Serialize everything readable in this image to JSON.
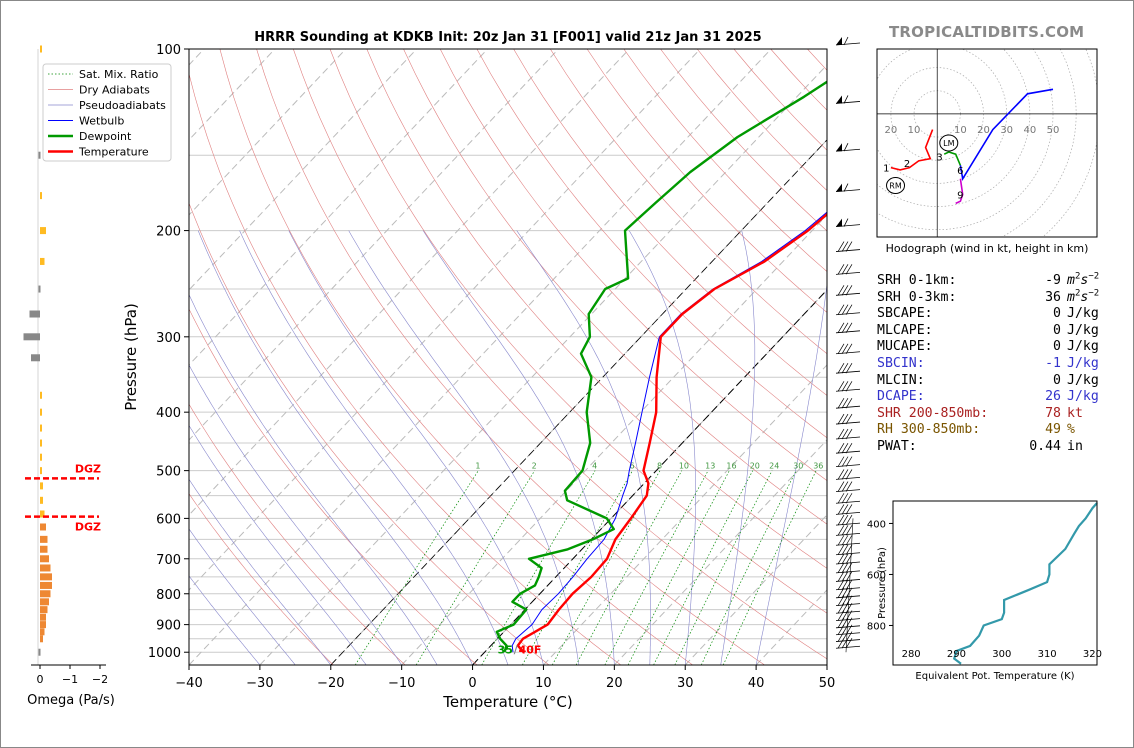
{
  "brand": "TROPICALTIDBITS.COM",
  "chart_data": [
    {
      "type": "line",
      "title": "HRRR Sounding at KDKB Init: 20z Jan 31 [F001] valid 21z Jan 31 2025",
      "xlabel": "Temperature (°C)",
      "ylabel": "Pressure (hPa)",
      "y_scale": "log",
      "xlim": [
        -40,
        50
      ],
      "ylim": [
        1050,
        100
      ],
      "xticks": [
        -40,
        -30,
        -20,
        -10,
        0,
        10,
        20,
        30,
        40,
        50
      ],
      "yticks": [
        100,
        200,
        300,
        400,
        500,
        600,
        700,
        800,
        900,
        1000
      ],
      "legend": {
        "placement": "top-left",
        "entries": [
          "Sat. Mix. Ratio",
          "Dry Adiabats",
          "Pseudoadiabats",
          "Wetbulb",
          "Dewpoint",
          "Temperature"
        ]
      },
      "colors": {
        "temperature": "#ff0000",
        "dewpoint": "#009900",
        "wetbulb": "#0000ff",
        "dry_adiabats": "#e08080",
        "pseudoadiabats": "#8888cc",
        "mixing_ratio": "#008800"
      },
      "series": [
        {
          "name": "Temperature",
          "points": [
            [
              5.5,
              1000
            ],
            [
              3.8,
              975
            ],
            [
              3.6,
              950
            ],
            [
              4.4,
              925
            ],
            [
              5.2,
              900
            ],
            [
              4.8,
              850
            ],
            [
              4.6,
              800
            ],
            [
              5.0,
              750
            ],
            [
              4.8,
              700
            ],
            [
              3.4,
              650
            ],
            [
              2.8,
              600
            ],
            [
              2.0,
              550
            ],
            [
              0.6,
              525
            ],
            [
              -1.8,
              500
            ],
            [
              -4.6,
              450
            ],
            [
              -7.8,
              400
            ],
            [
              -12.4,
              350
            ],
            [
              -17.2,
              300
            ],
            [
              -17.2,
              275
            ],
            [
              -16.0,
              250
            ],
            [
              -12.6,
              225
            ],
            [
              -10.6,
              200
            ],
            [
              -9.5,
              175
            ],
            [
              -8.1,
              150
            ],
            [
              -6.9,
              125
            ],
            [
              -4.6,
              110
            ],
            [
              -3.4,
              100
            ]
          ]
        },
        {
          "name": "Wetbulb",
          "points": [
            [
              4.0,
              1000
            ],
            [
              3.0,
              975
            ],
            [
              2.6,
              950
            ],
            [
              2.8,
              925
            ],
            [
              3.0,
              900
            ],
            [
              2.4,
              850
            ],
            [
              2.6,
              800
            ],
            [
              2.4,
              750
            ],
            [
              2.0,
              700
            ],
            [
              1.8,
              650
            ],
            [
              0.6,
              600
            ],
            [
              -1.4,
              550
            ],
            [
              -2.4,
              525
            ],
            [
              -3.8,
              500
            ],
            [
              -6.6,
              450
            ],
            [
              -9.8,
              400
            ],
            [
              -13.4,
              350
            ],
            [
              -17.4,
              300
            ],
            [
              -17.4,
              275
            ],
            [
              -16.2,
              250
            ],
            [
              -13.0,
              225
            ],
            [
              -11.0,
              200
            ],
            [
              -9.8,
              175
            ],
            [
              -8.4,
              150
            ],
            [
              -7.3,
              125
            ],
            [
              -5.0,
              110
            ],
            [
              -3.8,
              100
            ]
          ]
        },
        {
          "name": "Dewpoint",
          "points": [
            [
              2.8,
              1000
            ],
            [
              2.2,
              975
            ],
            [
              0.4,
              950
            ],
            [
              -1.0,
              925
            ],
            [
              0.4,
              900
            ],
            [
              0.2,
              850
            ],
            [
              -2.8,
              825
            ],
            [
              -2.8,
              800
            ],
            [
              -1.8,
              775
            ],
            [
              -2.4,
              750
            ],
            [
              -3.2,
              725
            ],
            [
              -6.2,
              700
            ],
            [
              -2.0,
              675
            ],
            [
              0.2,
              650
            ],
            [
              1.8,
              625
            ],
            [
              -0.6,
              600
            ],
            [
              -8.6,
              560
            ],
            [
              -10.2,
              540
            ],
            [
              -10.4,
              500
            ],
            [
              -13.0,
              450
            ],
            [
              -17.6,
              400
            ],
            [
              -21.6,
              350
            ],
            [
              -26.2,
              320
            ],
            [
              -27.2,
              300
            ],
            [
              -30.4,
              275
            ],
            [
              -31.4,
              250
            ],
            [
              -29.6,
              240
            ],
            [
              -36.4,
              200
            ],
            [
              -35.8,
              180
            ],
            [
              -35.0,
              160
            ],
            [
              -33.0,
              140
            ],
            [
              -29.0,
              120
            ],
            [
              -25.0,
              100
            ]
          ]
        }
      ]
    },
    {
      "type": "bar",
      "xlabel": "Omega (Pa/s)",
      "xticks": [
        "0",
        "−1",
        "−2"
      ],
      "markers": [
        "DGZ",
        "DGZ"
      ],
      "marker_pressure": [
        515,
        596
      ],
      "bars": [
        [
          100,
          -0.05
        ],
        [
          150,
          0.05
        ],
        [
          175,
          -0.05
        ],
        [
          200,
          -0.2
        ],
        [
          225,
          -0.15
        ],
        [
          250,
          0.05
        ],
        [
          275,
          0.35
        ],
        [
          300,
          0.55
        ],
        [
          325,
          0.3
        ],
        [
          375,
          -0.05
        ],
        [
          400,
          -0.05
        ],
        [
          425,
          -0.05
        ],
        [
          450,
          -0.05
        ],
        [
          475,
          -0.05
        ],
        [
          500,
          -0.05
        ],
        [
          530,
          -0.1
        ],
        [
          560,
          -0.1
        ],
        [
          590,
          -0.15
        ],
        [
          620,
          -0.2
        ],
        [
          650,
          -0.25
        ],
        [
          675,
          -0.25
        ],
        [
          700,
          -0.3
        ],
        [
          725,
          -0.35
        ],
        [
          750,
          -0.4
        ],
        [
          775,
          -0.4
        ],
        [
          800,
          -0.35
        ],
        [
          825,
          -0.3
        ],
        [
          850,
          -0.25
        ],
        [
          875,
          -0.2
        ],
        [
          900,
          -0.2
        ],
        [
          925,
          -0.15
        ],
        [
          950,
          -0.1
        ],
        [
          1000,
          0.05
        ]
      ]
    },
    {
      "type": "line",
      "title": "Hodograph (wind in kt, height in km)",
      "ring_labels": [
        "20",
        "10",
        "10",
        "20",
        "30",
        "40",
        "50"
      ],
      "labels": [
        "1",
        "2",
        "3",
        "6",
        "9"
      ],
      "motion_labels": [
        "LM",
        "RM"
      ],
      "xlim": [
        -26,
        69
      ],
      "ylim": [
        -55,
        29
      ],
      "segments": [
        {
          "color": "#ff0000",
          "points": [
            [
              -20,
              -24
            ],
            [
              -16,
              -25
            ],
            [
              -12,
              -24
            ],
            [
              -8,
              -21
            ],
            [
              -3,
              -20
            ],
            [
              -5,
              -15
            ],
            [
              -2,
              -7
            ]
          ]
        },
        {
          "color": "#009900",
          "points": [
            [
              3,
              -18
            ],
            [
              5,
              -17
            ],
            [
              8,
              -18
            ],
            [
              10,
              -23
            ]
          ]
        },
        {
          "color": "#0000ff",
          "points": [
            [
              10,
              -23
            ],
            [
              11,
              -29
            ],
            [
              24,
              -7
            ],
            [
              39,
              9
            ],
            [
              50,
              11
            ]
          ]
        },
        {
          "color": "#cc00cc",
          "points": [
            [
              10,
              -29
            ],
            [
              11,
              -36
            ],
            [
              10,
              -39
            ],
            [
              8,
              -40
            ]
          ]
        }
      ],
      "label_points": [
        [
          -22,
          -24
        ],
        [
          -13,
          -22
        ],
        [
          1,
          -19
        ],
        [
          10,
          -25
        ],
        [
          10,
          -36
        ]
      ],
      "motion_points": [
        [
          5,
          -13
        ],
        [
          -18,
          -32
        ]
      ]
    },
    {
      "type": "line",
      "xlabel": "Equivalent Pot. Temperature (K)",
      "ylabel": "Pressure (hPa)",
      "xlim": [
        276,
        321
      ],
      "ylim": [
        955,
        312
      ],
      "xticks": [
        280,
        290,
        300,
        310,
        320
      ],
      "yticks": [
        400,
        600,
        800
      ],
      "color": "#3399aa",
      "points": [
        [
          291,
          950
        ],
        [
          289.5,
          930
        ],
        [
          290,
          900
        ],
        [
          293,
          880
        ],
        [
          295,
          840
        ],
        [
          296,
          800
        ],
        [
          300,
          775
        ],
        [
          300.5,
          750
        ],
        [
          300.5,
          700
        ],
        [
          306,
          660
        ],
        [
          310,
          630
        ],
        [
          310.5,
          600
        ],
        [
          310.5,
          560
        ],
        [
          314,
          500
        ],
        [
          316,
          440
        ],
        [
          317,
          410
        ],
        [
          318.5,
          380
        ],
        [
          320,
          340
        ],
        [
          321,
          320
        ]
      ]
    }
  ],
  "indices": [
    {
      "label": "SRH 0-1km:",
      "value": "-9",
      "unit": "m",
      "sup1": "2",
      "unit_mid": "s",
      "sup2": "−2",
      "color": "#000000"
    },
    {
      "label": "SRH 0-3km:",
      "value": "36",
      "unit": "m",
      "sup1": "2",
      "unit_mid": "s",
      "sup2": "−2",
      "color": "#000000"
    },
    {
      "label": "SBCAPE:",
      "value": "0",
      "unit": "J/kg",
      "color": "#000000"
    },
    {
      "label": "MLCAPE:",
      "value": "0",
      "unit": "J/kg",
      "color": "#000000"
    },
    {
      "label": "MUCAPE:",
      "value": "0",
      "unit": "J/kg",
      "color": "#000000"
    },
    {
      "label": "SBCIN:",
      "value": "-1",
      "unit": "J/kg",
      "color": "#3333cc"
    },
    {
      "label": "MLCIN:",
      "value": "0",
      "unit": "J/kg",
      "color": "#000000"
    },
    {
      "label": "DCAPE:",
      "value": "26",
      "unit": "J/kg",
      "color": "#3333cc"
    },
    {
      "label": "SHR 200-850mb:",
      "value": "78",
      "unit": "kt",
      "color": "#aa2222"
    },
    {
      "label": "RH 300-850mb:",
      "value": "49",
      "unit": "%",
      "color": "#7a5500"
    },
    {
      "label": "PWAT:",
      "value": "0.44",
      "unit": "in",
      "color": "#000000"
    }
  ],
  "surface": {
    "dewpoint_label": "35",
    "temp_label": "40F"
  },
  "mixing_ratio_labels": [
    "1",
    "2",
    "4",
    "6",
    "8",
    "10",
    "13",
    "16",
    "20",
    "24",
    "30",
    "36"
  ]
}
